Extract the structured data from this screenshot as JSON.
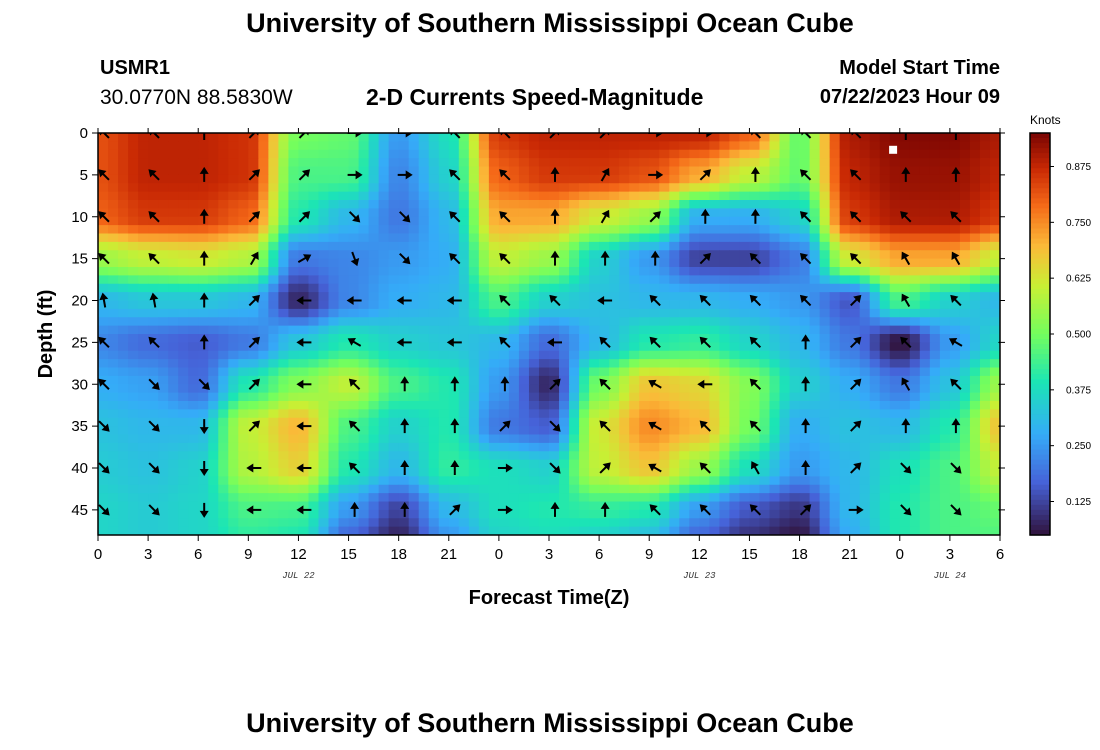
{
  "header": {
    "title": "University of Southern Mississippi Ocean Cube",
    "station_id": "USMR1",
    "station_coords": "30.0770N  88.5830W",
    "plot_title": "2-D Currents Speed-Magnitude",
    "model_start_label": "Model Start Time",
    "model_start_value": "07/22/2023 Hour 09"
  },
  "footer": {
    "title": "University of Southern Mississippi Ocean Cube"
  },
  "chart_data": {
    "type": "heatmap",
    "title": "2-D Currents Speed-Magnitude",
    "xlabel": "Forecast Time(Z)",
    "ylabel": "Depth (ft)",
    "x_ticks": [
      "0",
      "3",
      "6",
      "9",
      "12",
      "15",
      "18",
      "21",
      "0",
      "3",
      "6",
      "9",
      "12",
      "15",
      "18",
      "21",
      "0",
      "3",
      "6"
    ],
    "date_labels": [
      {
        "label": "JUL 22",
        "tick_index": 4
      },
      {
        "label": "JUL 23",
        "tick_index": 12
      },
      {
        "label": "JUL 24",
        "tick_index": 17
      }
    ],
    "y_ticks": [
      0,
      5,
      10,
      15,
      20,
      25,
      30,
      35,
      40,
      45
    ],
    "ylim": [
      0,
      48
    ],
    "xlim_hours": [
      0,
      54
    ],
    "colorbar": {
      "label": "Knots",
      "range": [
        0.05,
        0.95
      ],
      "ticks": [
        0.125,
        0.25,
        0.375,
        0.5,
        0.625,
        0.75,
        0.875
      ],
      "tick_labels": [
        "0.125",
        "0.250",
        "0.375",
        "0.500",
        "0.625",
        "0.750",
        "0.875"
      ]
    },
    "depths": [
      0,
      5,
      10,
      15,
      20,
      25,
      30,
      35,
      40,
      45,
      48
    ],
    "hours": [
      0,
      3,
      6,
      9,
      12,
      15,
      18,
      21,
      24,
      27,
      30,
      33,
      36,
      39,
      42,
      45,
      48,
      51,
      54
    ],
    "speed": [
      [
        0.82,
        0.88,
        0.88,
        0.86,
        0.5,
        0.48,
        0.25,
        0.38,
        0.85,
        0.88,
        0.88,
        0.88,
        0.88,
        0.8,
        0.48,
        0.9,
        0.94,
        0.94,
        0.9
      ],
      [
        0.82,
        0.88,
        0.88,
        0.86,
        0.45,
        0.45,
        0.22,
        0.35,
        0.8,
        0.85,
        0.85,
        0.82,
        0.72,
        0.6,
        0.48,
        0.88,
        0.92,
        0.92,
        0.88
      ],
      [
        0.8,
        0.85,
        0.85,
        0.8,
        0.4,
        0.3,
        0.2,
        0.3,
        0.72,
        0.72,
        0.62,
        0.55,
        0.28,
        0.28,
        0.35,
        0.85,
        0.9,
        0.9,
        0.85
      ],
      [
        0.55,
        0.6,
        0.62,
        0.58,
        0.2,
        0.22,
        0.25,
        0.28,
        0.6,
        0.55,
        0.35,
        0.25,
        0.12,
        0.12,
        0.2,
        0.62,
        0.72,
        0.72,
        0.6
      ],
      [
        0.3,
        0.33,
        0.33,
        0.3,
        0.08,
        0.22,
        0.28,
        0.3,
        0.45,
        0.35,
        0.32,
        0.3,
        0.3,
        0.28,
        0.25,
        0.15,
        0.45,
        0.35,
        0.3
      ],
      [
        0.22,
        0.18,
        0.16,
        0.2,
        0.33,
        0.4,
        0.35,
        0.33,
        0.3,
        0.18,
        0.3,
        0.4,
        0.42,
        0.36,
        0.3,
        0.2,
        0.05,
        0.25,
        0.36
      ],
      [
        0.28,
        0.26,
        0.18,
        0.4,
        0.52,
        0.6,
        0.45,
        0.4,
        0.25,
        0.08,
        0.5,
        0.68,
        0.65,
        0.52,
        0.35,
        0.28,
        0.2,
        0.32,
        0.55
      ],
      [
        0.32,
        0.3,
        0.3,
        0.6,
        0.7,
        0.45,
        0.35,
        0.4,
        0.2,
        0.16,
        0.62,
        0.75,
        0.7,
        0.5,
        0.28,
        0.32,
        0.3,
        0.4,
        0.68
      ],
      [
        0.34,
        0.32,
        0.35,
        0.58,
        0.66,
        0.4,
        0.3,
        0.42,
        0.38,
        0.35,
        0.6,
        0.68,
        0.55,
        0.38,
        0.25,
        0.3,
        0.38,
        0.45,
        0.6
      ],
      [
        0.36,
        0.34,
        0.36,
        0.45,
        0.44,
        0.25,
        0.12,
        0.3,
        0.38,
        0.4,
        0.42,
        0.4,
        0.25,
        0.15,
        0.1,
        0.3,
        0.4,
        0.45,
        0.48
      ],
      [
        0.36,
        0.34,
        0.36,
        0.42,
        0.4,
        0.18,
        0.08,
        0.25,
        0.36,
        0.38,
        0.36,
        0.32,
        0.18,
        0.1,
        0.06,
        0.28,
        0.4,
        0.45,
        0.46
      ]
    ],
    "arrow_depths": [
      0,
      5,
      10,
      15,
      20,
      25,
      30,
      35,
      40,
      45
    ],
    "arrow_hours": [
      0,
      3,
      6,
      9,
      12,
      15,
      18,
      21,
      24,
      27,
      30,
      33,
      36,
      39,
      42,
      45,
      48,
      51,
      54
    ],
    "arrow_directions_deg": [
      [
        45,
        45,
        90,
        135,
        135,
        180,
        180,
        45,
        45,
        135,
        135,
        180,
        180,
        45,
        45,
        45,
        90,
        90,
        45
      ],
      [
        45,
        45,
        90,
        135,
        135,
        180,
        180,
        45,
        45,
        90,
        120,
        180,
        135,
        90,
        45,
        45,
        90,
        90,
        45
      ],
      [
        45,
        45,
        90,
        135,
        135,
        225,
        225,
        45,
        45,
        90,
        120,
        135,
        90,
        90,
        45,
        45,
        45,
        45,
        45
      ],
      [
        45,
        45,
        90,
        120,
        150,
        250,
        225,
        45,
        45,
        90,
        90,
        90,
        135,
        45,
        45,
        45,
        60,
        60,
        45
      ],
      [
        80,
        80,
        90,
        135,
        0,
        0,
        0,
        0,
        45,
        45,
        0,
        45,
        45,
        45,
        45,
        135,
        60,
        45,
        45
      ],
      [
        45,
        45,
        90,
        135,
        0,
        30,
        0,
        0,
        45,
        0,
        45,
        45,
        45,
        45,
        90,
        135,
        45,
        30,
        0
      ],
      [
        45,
        225,
        225,
        135,
        0,
        45,
        90,
        90,
        90,
        135,
        45,
        30,
        0,
        45,
        90,
        135,
        60,
        45,
        0
      ],
      [
        225,
        225,
        270,
        135,
        0,
        45,
        90,
        90,
        135,
        225,
        45,
        30,
        45,
        45,
        90,
        135,
        90,
        90,
        0
      ],
      [
        225,
        225,
        270,
        0,
        0,
        45,
        90,
        90,
        180,
        225,
        135,
        30,
        45,
        60,
        90,
        135,
        225,
        225,
        0
      ],
      [
        225,
        225,
        270,
        0,
        0,
        90,
        90,
        135,
        180,
        90,
        90,
        45,
        45,
        45,
        135,
        180,
        225,
        225,
        0
      ]
    ],
    "marker": {
      "hour": 47.6,
      "depth": 2
    }
  }
}
